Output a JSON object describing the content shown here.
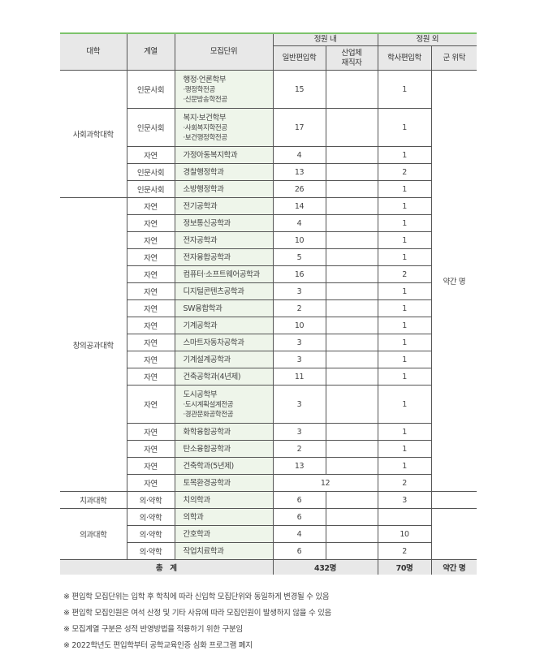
{
  "header": {
    "college": "대학",
    "track": "계열",
    "unit": "모집단위",
    "in_quota": "정원 내",
    "out_quota": "정원 외",
    "general_transfer": "일반편입학",
    "industry_line1": "산업체",
    "industry_line2": "재직자",
    "bachelor_transfer": "학사편입학",
    "military": "군 위탁"
  },
  "military_value": "약간 명",
  "colleges": [
    {
      "name": "사회과학대학",
      "units": [
        {
          "track": "인문사회",
          "unit": "행정·언론학부",
          "subs": [
            "·행정학전공",
            "·신문방송학전공"
          ],
          "general": "15",
          "industry": "",
          "bachelor": "1"
        },
        {
          "track": "인문사회",
          "unit": "복지·보건학부",
          "subs": [
            "·사회복지학전공",
            "·보건행정학전공"
          ],
          "general": "17",
          "industry": "",
          "bachelor": "1"
        },
        {
          "track": "자연",
          "unit": "가정아동복지학과",
          "general": "4",
          "industry": "",
          "bachelor": "1"
        },
        {
          "track": "인문사회",
          "unit": "경찰행정학과",
          "general": "13",
          "industry": "",
          "bachelor": "2"
        },
        {
          "track": "인문사회",
          "unit": "소방행정학과",
          "general": "26",
          "industry": "",
          "bachelor": "1"
        }
      ]
    },
    {
      "name": "창의공과대학",
      "units": [
        {
          "track": "자연",
          "unit": "전기공학과",
          "general": "14",
          "industry": "",
          "bachelor": "1"
        },
        {
          "track": "자연",
          "unit": "정보통신공학과",
          "general": "4",
          "industry": "",
          "bachelor": "1"
        },
        {
          "track": "자연",
          "unit": "전자공학과",
          "general": "10",
          "industry": "",
          "bachelor": "1"
        },
        {
          "track": "자연",
          "unit": "전자융합공학과",
          "general": "5",
          "industry": "",
          "bachelor": "1"
        },
        {
          "track": "자연",
          "unit": "컴퓨터·소프트웨어공학과",
          "general": "16",
          "industry": "",
          "bachelor": "2"
        },
        {
          "track": "자연",
          "unit": "디지털콘텐츠공학과",
          "general": "3",
          "industry": "",
          "bachelor": "1"
        },
        {
          "track": "자연",
          "unit": "SW융합학과",
          "general": "2",
          "industry": "",
          "bachelor": "1"
        },
        {
          "track": "자연",
          "unit": "기계공학과",
          "general": "10",
          "industry": "",
          "bachelor": "1"
        },
        {
          "track": "자연",
          "unit": "스마트자동차공학과",
          "general": "3",
          "industry": "",
          "bachelor": "1"
        },
        {
          "track": "자연",
          "unit": "기계설계공학과",
          "general": "3",
          "industry": "",
          "bachelor": "1"
        },
        {
          "track": "자연",
          "unit": "건축공학과(4년제)",
          "general": "11",
          "industry": "",
          "bachelor": "1"
        },
        {
          "track": "자연",
          "unit": "도시공학부",
          "subs": [
            "·도시계획설계전공",
            "·경관문화공학전공"
          ],
          "general": "3",
          "industry": "",
          "bachelor": "1"
        },
        {
          "track": "자연",
          "unit": "화학융합공학과",
          "general": "3",
          "industry": "",
          "bachelor": "1"
        },
        {
          "track": "자연",
          "unit": "탄소융합공학과",
          "general": "2",
          "industry": "",
          "bachelor": "1"
        },
        {
          "track": "자연",
          "unit": "건축학과(5년제)",
          "general": "13",
          "industry": "",
          "bachelor": "1"
        },
        {
          "track": "자연",
          "unit": "토목환경공학과",
          "combined": "12",
          "bachelor": "2"
        }
      ]
    },
    {
      "name": "치과대학",
      "units": [
        {
          "track": "의·약학",
          "unit": "치의학과",
          "general": "6",
          "industry": "",
          "bachelor": "3"
        }
      ]
    },
    {
      "name": "의과대학",
      "units": [
        {
          "track": "의·약학",
          "unit": "의학과",
          "general": "6",
          "industry": "",
          "bachelor": ""
        },
        {
          "track": "의·약학",
          "unit": "간호학과",
          "general": "4",
          "industry": "",
          "bachelor": "10"
        },
        {
          "track": "의·약학",
          "unit": "작업치료학과",
          "general": "6",
          "industry": "",
          "bachelor": "2"
        }
      ]
    }
  ],
  "total": {
    "label": "총　계",
    "in_quota": "432명",
    "bachelor": "70명",
    "military": "약간 명"
  },
  "notes": [
    "※ 편입학 모집단위는 입학 후 학칙에 따라 신입학 모집단위와 동일하게 변경될 수 있음",
    "※ 편입학 모집인원은 여석 산정 및 기타 사유에 따라 모집인원이 발생하지 않을 수 있음",
    "※ 모집계열 구분은 성적 반영방법을 적용하기 위한 구분임",
    "※ 2022학년도 편입학부터 공학교육인증 심화 프로그램 폐지"
  ]
}
